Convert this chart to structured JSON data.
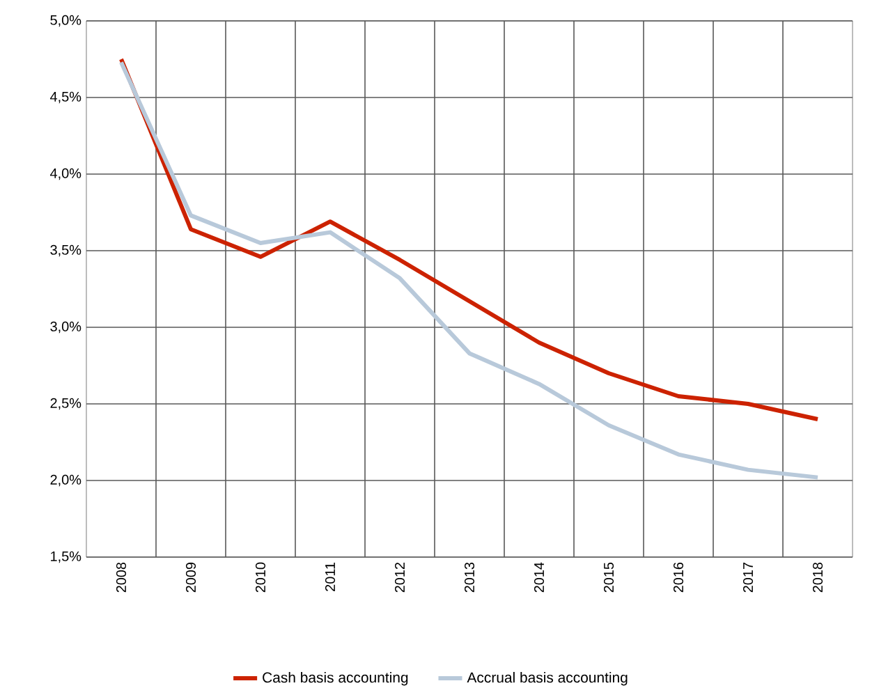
{
  "chart_data": {
    "type": "line",
    "categories": [
      "2008",
      "2009",
      "2010",
      "2011",
      "2012",
      "2013",
      "2014",
      "2015",
      "2016",
      "2017",
      "2018"
    ],
    "series": [
      {
        "name": "Cash basis accounting",
        "color": "#cc2200",
        "values": [
          4.75,
          3.64,
          3.46,
          3.69,
          3.44,
          3.17,
          2.9,
          2.7,
          2.55,
          2.5,
          2.4
        ]
      },
      {
        "name": "Accrual basis accounting",
        "color": "#b8c9da",
        "values": [
          4.73,
          3.73,
          3.55,
          3.62,
          3.32,
          2.83,
          2.63,
          2.36,
          2.17,
          2.07,
          2.02
        ]
      }
    ],
    "ylim": [
      1.5,
      5.0
    ],
    "yticks": [
      {
        "value": 1.5,
        "label": "1,5%"
      },
      {
        "value": 2.0,
        "label": "2,0%"
      },
      {
        "value": 2.5,
        "label": "2,5%"
      },
      {
        "value": 3.0,
        "label": "3,0%"
      },
      {
        "value": 3.5,
        "label": "3,5%"
      },
      {
        "value": 4.0,
        "label": "4,0%"
      },
      {
        "value": 4.5,
        "label": "4,5%"
      },
      {
        "value": 5.0,
        "label": "5,0%"
      }
    ],
    "grid": true,
    "legend": "bottom",
    "marker": "none",
    "line_style": "solid"
  }
}
